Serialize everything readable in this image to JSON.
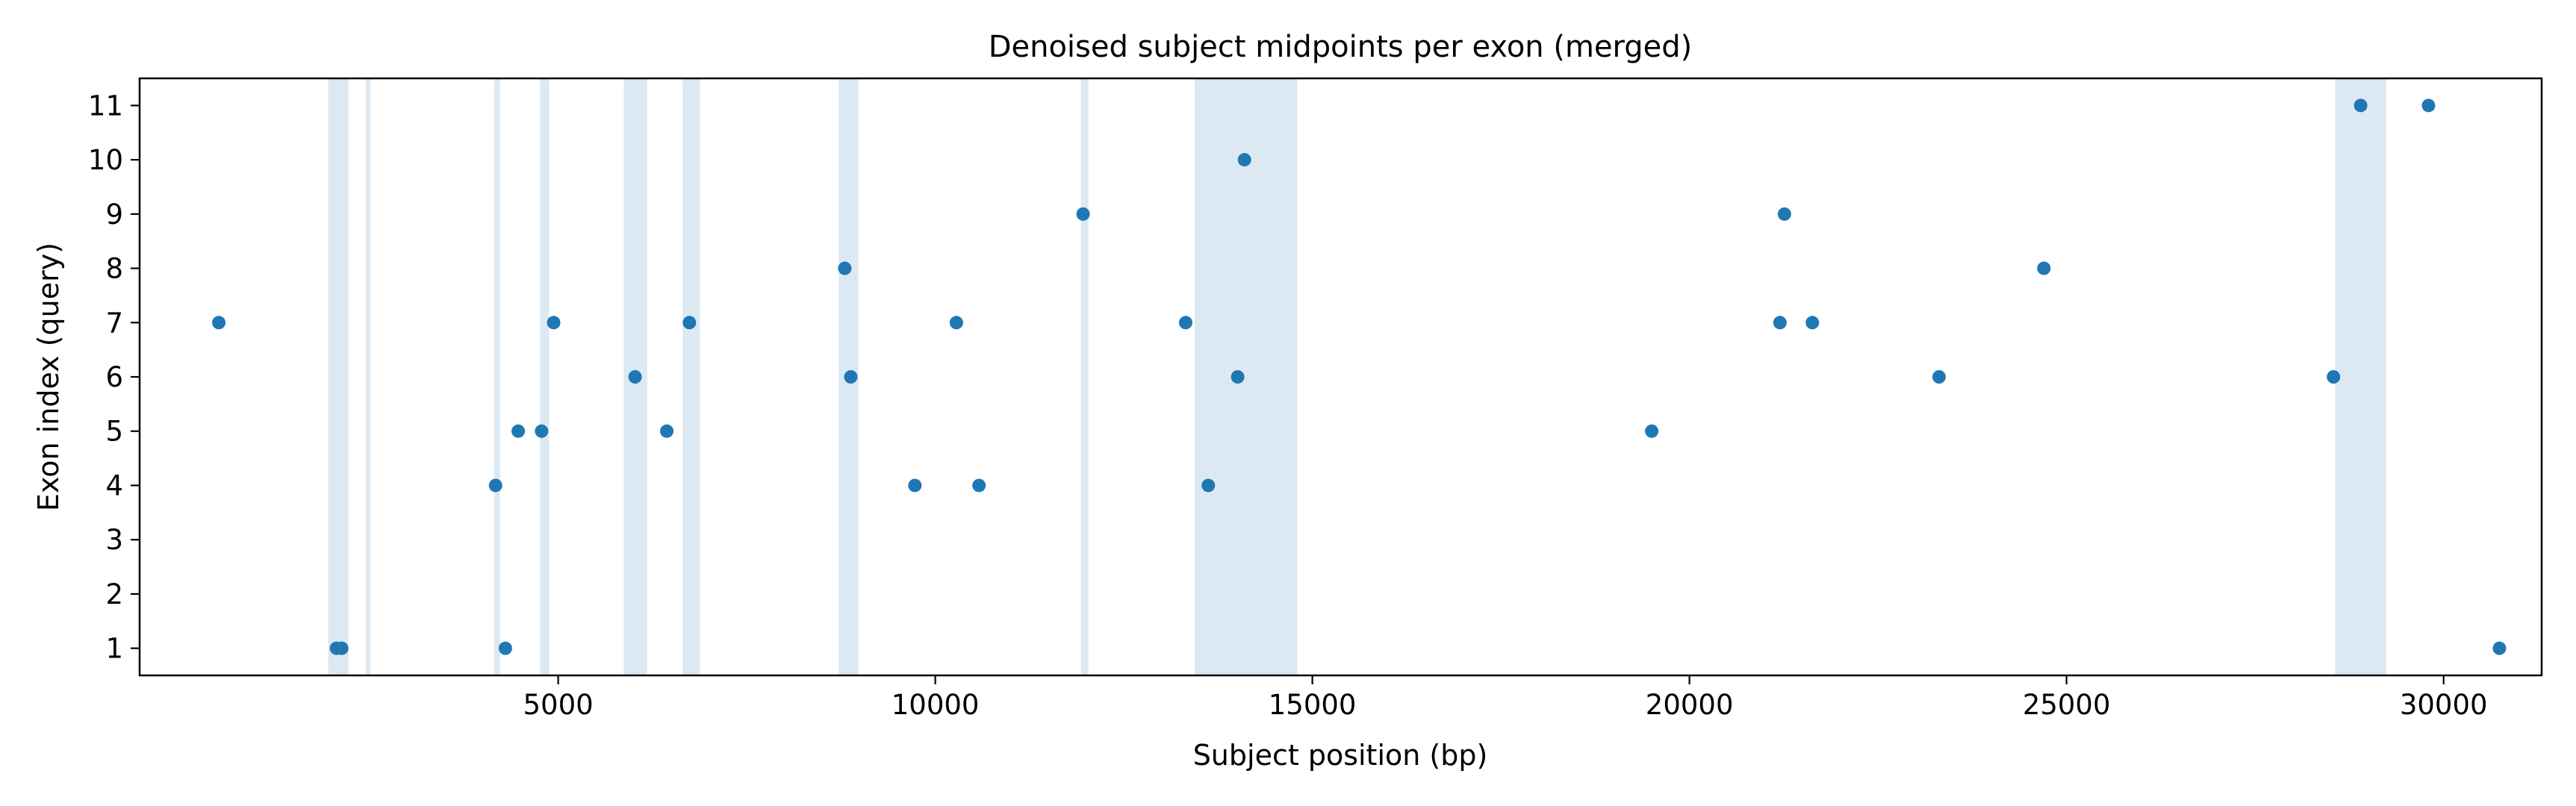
{
  "chart_data": {
    "type": "scatter",
    "title": "Denoised subject midpoints per exon (merged)",
    "xlabel": "Subject position (bp)",
    "ylabel": "Exon index (query)",
    "xlim": [
      -550,
      31300
    ],
    "ylim": [
      0.5,
      11.5
    ],
    "x_ticks": [
      5000,
      10000,
      15000,
      20000,
      25000,
      30000
    ],
    "x_tick_labels": [
      "5000",
      "10000",
      "15000",
      "20000",
      "25000",
      "30000"
    ],
    "y_ticks": [
      1,
      2,
      3,
      4,
      5,
      6,
      7,
      8,
      9,
      10,
      11
    ],
    "y_tick_labels": [
      "1",
      "2",
      "3",
      "4",
      "5",
      "6",
      "7",
      "8",
      "9",
      "10",
      "11"
    ],
    "grid": false,
    "legend": "none",
    "colors": {
      "points": "#1f77b4",
      "regions": "#dce9f3",
      "axes": "#000000",
      "background": "#ffffff"
    },
    "highlighted_regions": [
      [
        1950,
        2220
      ],
      [
        2450,
        2510
      ],
      [
        4150,
        4230
      ],
      [
        4760,
        4880
      ],
      [
        5870,
        6180
      ],
      [
        6650,
        6880
      ],
      [
        8720,
        8980
      ],
      [
        11930,
        12030
      ],
      [
        13440,
        14800
      ],
      [
        28560,
        29240
      ]
    ],
    "points": [
      {
        "x": 500,
        "y": 7
      },
      {
        "x": 2060,
        "y": 1
      },
      {
        "x": 2130,
        "y": 1
      },
      {
        "x": 4170,
        "y": 4
      },
      {
        "x": 4300,
        "y": 1
      },
      {
        "x": 4470,
        "y": 5
      },
      {
        "x": 4780,
        "y": 5
      },
      {
        "x": 4940,
        "y": 7
      },
      {
        "x": 6020,
        "y": 6
      },
      {
        "x": 6440,
        "y": 5
      },
      {
        "x": 6740,
        "y": 7
      },
      {
        "x": 8800,
        "y": 8
      },
      {
        "x": 8880,
        "y": 6
      },
      {
        "x": 9730,
        "y": 4
      },
      {
        "x": 10280,
        "y": 7
      },
      {
        "x": 10580,
        "y": 4
      },
      {
        "x": 11960,
        "y": 9
      },
      {
        "x": 13320,
        "y": 7
      },
      {
        "x": 13620,
        "y": 4
      },
      {
        "x": 14010,
        "y": 6
      },
      {
        "x": 14100,
        "y": 10
      },
      {
        "x": 19500,
        "y": 5
      },
      {
        "x": 21200,
        "y": 7
      },
      {
        "x": 21260,
        "y": 9
      },
      {
        "x": 21630,
        "y": 7
      },
      {
        "x": 23310,
        "y": 6
      },
      {
        "x": 24700,
        "y": 8
      },
      {
        "x": 28540,
        "y": 6
      },
      {
        "x": 28900,
        "y": 11
      },
      {
        "x": 29800,
        "y": 11
      },
      {
        "x": 30740,
        "y": 1
      }
    ]
  }
}
